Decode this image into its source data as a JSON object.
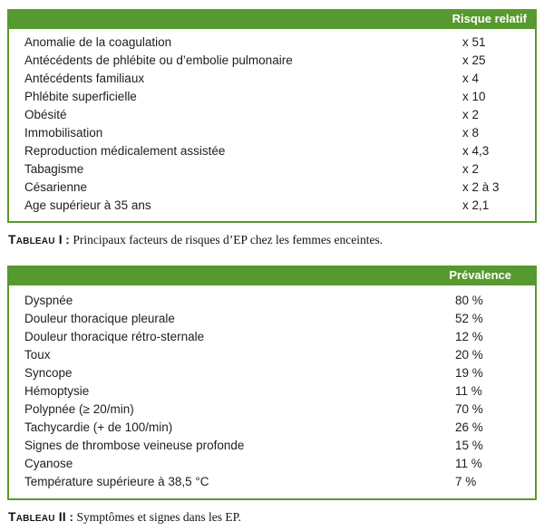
{
  "colors": {
    "green": "#57992e",
    "header_text": "#ffffff",
    "row_text": "#1e1e1e",
    "caption_text": "#141414",
    "page_bg": "#ffffff"
  },
  "table1": {
    "header": "Risque relatif",
    "rows": [
      {
        "label": "Anomalie de la coagulation",
        "value": "x 51"
      },
      {
        "label": "Antécédents de phlébite ou d’embolie pulmonaire",
        "value": "x 25"
      },
      {
        "label": "Antécédents familiaux",
        "value": "x 4"
      },
      {
        "label": "Phlébite superficielle",
        "value": "x 10"
      },
      {
        "label": "Obésité",
        "value": "x 2"
      },
      {
        "label": "Immobilisation",
        "value": "x 8"
      },
      {
        "label": "Reproduction médicalement assistée",
        "value": "x 4,3"
      },
      {
        "label": "Tabagisme",
        "value": "x 2"
      },
      {
        "label": "Césarienne",
        "value": "x 2 à 3"
      },
      {
        "label": "Age supérieur à 35 ans",
        "value": "x 2,1"
      }
    ],
    "caption_label": "Tableau I",
    "caption_separator": " : ",
    "caption_text": "Principaux facteurs de risques d’EP chez les femmes enceintes."
  },
  "table2": {
    "header": "Prévalence",
    "rows": [
      {
        "label": "Dyspnée",
        "value": "80 %"
      },
      {
        "label": "Douleur thoracique pleurale",
        "value": "52 %"
      },
      {
        "label": "Douleur thoracique rétro-sternale",
        "value": "12 %"
      },
      {
        "label": "Toux",
        "value": "20 %"
      },
      {
        "label": "Syncope",
        "value": "19 %"
      },
      {
        "label": "Hémoptysie",
        "value": "11 %"
      },
      {
        "label": "Polypnée (≥ 20/min)",
        "value": "70 %"
      },
      {
        "label": "Tachycardie (+ de 100/min)",
        "value": "26 %"
      },
      {
        "label": "Signes de thrombose veineuse profonde",
        "value": "15 %"
      },
      {
        "label": "Cyanose",
        "value": "11 %"
      },
      {
        "label": "Température supérieure à 38,5 °C",
        "value": "7 %"
      }
    ],
    "caption_label": "Tableau II",
    "caption_separator": " : ",
    "caption_text": "Symptômes et signes dans les EP."
  }
}
